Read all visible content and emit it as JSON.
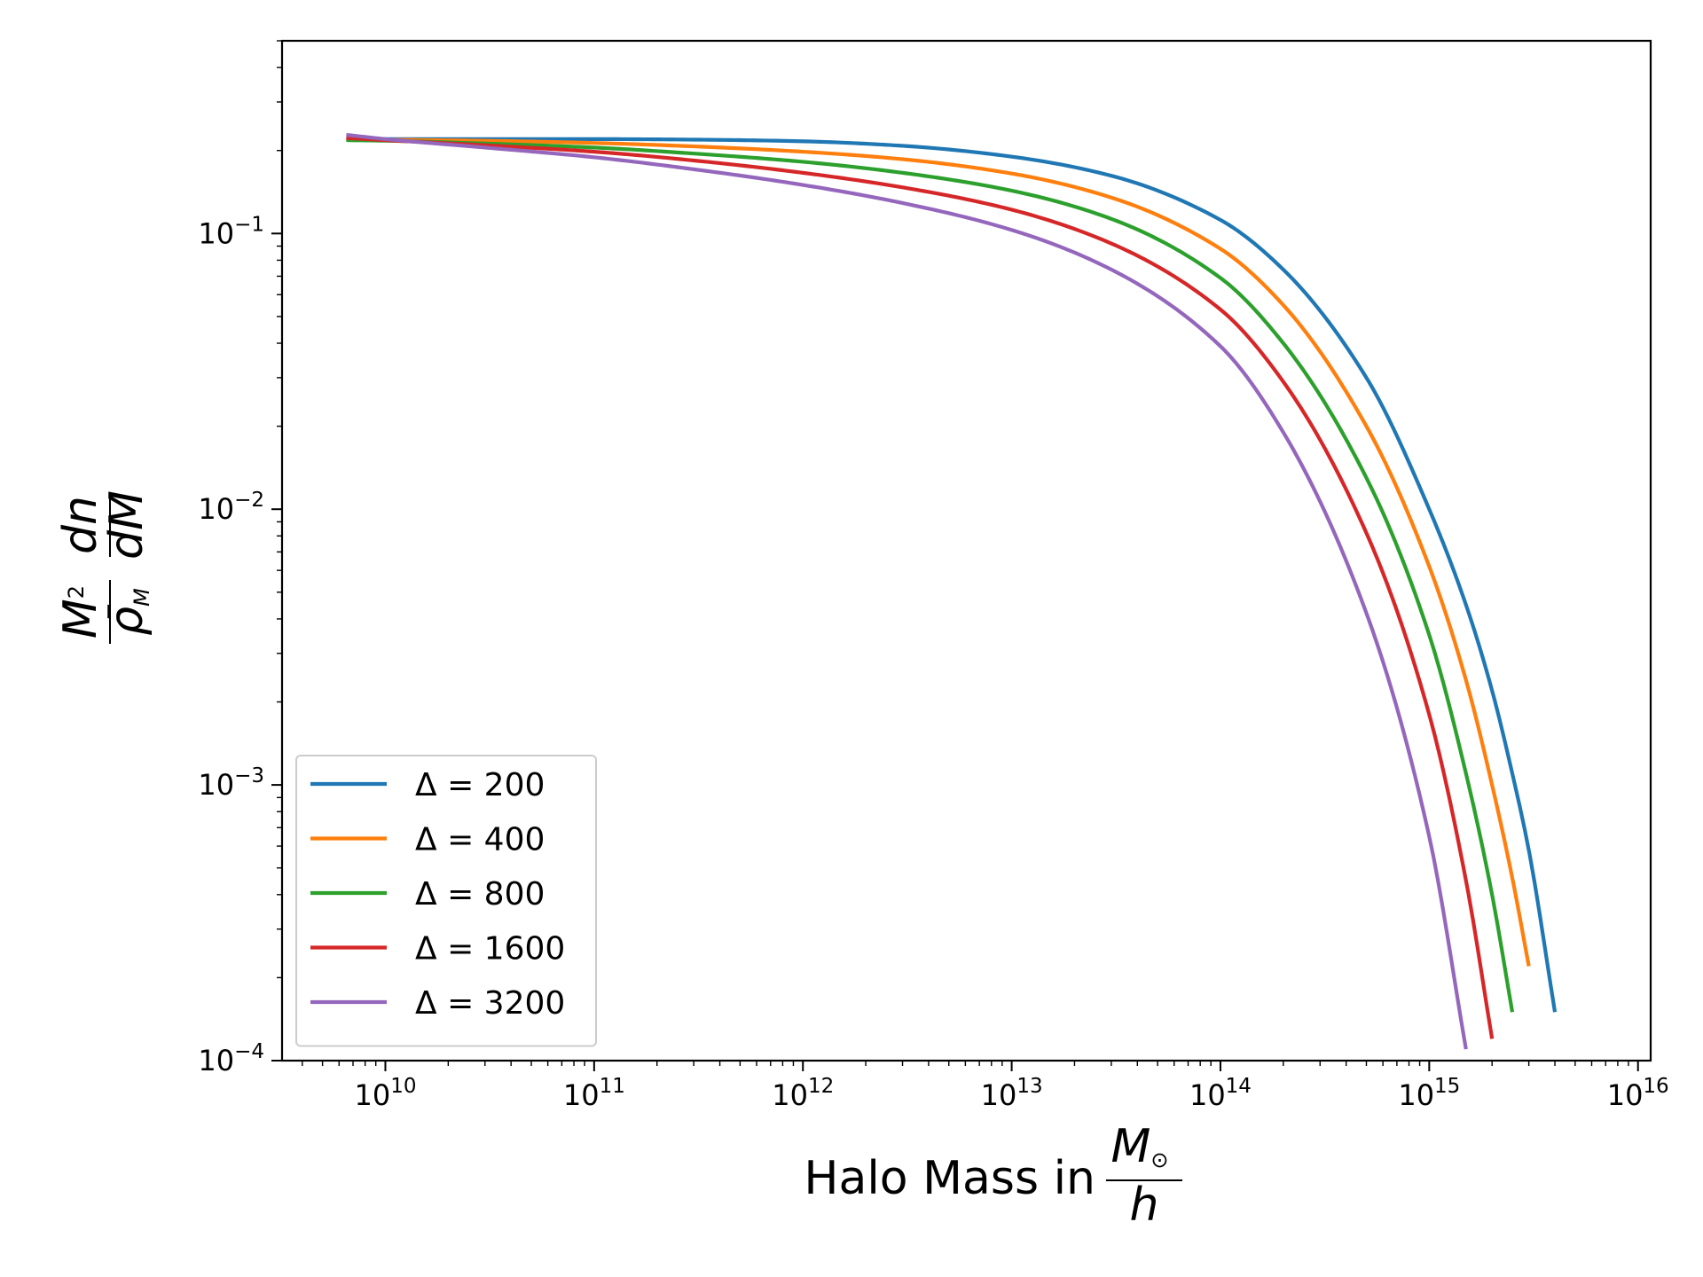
{
  "chart_data": {
    "type": "line",
    "title": "",
    "xlabel": "Halo Mass in M⊙/h",
    "ylabel": "M²/ρ̄_M · dn/dM",
    "xscale": "log",
    "yscale": "log",
    "xlim": [
      3200000000.0,
      1.15e+16
    ],
    "ylim": [
      0.0001,
      0.5
    ],
    "grid": false,
    "legend": "lower-left",
    "x_tick_labels": [
      "10^10",
      "10^11",
      "10^12",
      "10^13",
      "10^14",
      "10^15",
      "10^16"
    ],
    "y_tick_labels": [
      "10^-4",
      "10^-3",
      "10^-2",
      "10^-1"
    ],
    "x": [
      6500000000.0,
      10000000000.0,
      30000000000.0,
      100000000000.0,
      300000000000.0,
      1000000000000.0,
      3000000000000.0,
      10000000000000.0,
      30000000000000.0,
      100000000000000.0,
      200000000000000.0,
      500000000000000.0,
      1000000000000000.0,
      1500000000000000.0,
      2000000000000000.0,
      2500000000000000.0,
      3000000000000000.0,
      4000000000000000.0
    ],
    "series": [
      {
        "name": "Δ = 200",
        "color": "#1f77b4",
        "values": [
          0.22,
          0.22,
          0.22,
          0.22,
          0.219,
          0.216,
          0.208,
          0.19,
          0.162,
          0.112,
          0.074,
          0.03,
          0.01,
          0.0045,
          0.0022,
          0.0011,
          0.00058,
          0.00015
        ]
      },
      {
        "name": "Δ = 400",
        "color": "#ff7f0e",
        "values": [
          0.22,
          0.219,
          0.217,
          0.213,
          0.207,
          0.198,
          0.186,
          0.165,
          0.135,
          0.088,
          0.055,
          0.02,
          0.0062,
          0.0024,
          0.001,
          0.00046,
          0.00022,
          null
        ]
      },
      {
        "name": "Δ = 800",
        "color": "#2ca02c",
        "values": [
          0.218,
          0.217,
          0.212,
          0.205,
          0.195,
          0.182,
          0.166,
          0.143,
          0.113,
          0.069,
          0.04,
          0.013,
          0.0035,
          0.0011,
          0.0004,
          0.00015,
          null,
          null
        ]
      },
      {
        "name": "Δ = 1600",
        "color": "#d62728",
        "values": [
          0.222,
          0.218,
          0.209,
          0.198,
          0.184,
          0.166,
          0.147,
          0.122,
          0.092,
          0.053,
          0.029,
          0.0082,
          0.0018,
          0.00045,
          0.00012,
          null,
          null,
          null
        ]
      },
      {
        "name": "Δ = 3200",
        "color": "#9467bd",
        "values": [
          0.228,
          0.22,
          0.205,
          0.189,
          0.171,
          0.15,
          0.129,
          0.103,
          0.074,
          0.039,
          0.019,
          0.0042,
          0.00065,
          0.00011,
          null,
          null,
          null,
          null
        ]
      }
    ]
  }
}
